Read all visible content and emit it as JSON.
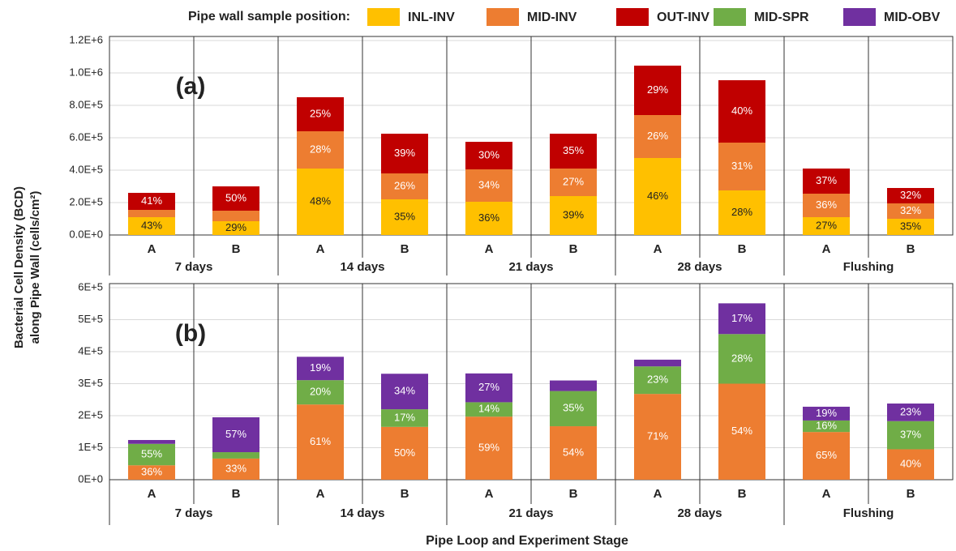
{
  "legend_title": "Pipe wall sample position:",
  "y_label": [
    "Bacterial Cell Density (BCD)",
    "along Pipe Wall (cells/cm²)"
  ],
  "x_label": "Pipe Loop and Experiment Stage",
  "chart_data": [
    {
      "type": "stacked_bar",
      "annotation": "(a)",
      "categories": [
        "A",
        "B",
        "A",
        "B",
        "A",
        "B",
        "A",
        "B",
        "A",
        "B"
      ],
      "group_labels": [
        "7 days",
        "14 days",
        "21 days",
        "28 days",
        "Flushing"
      ],
      "ylim": [
        0,
        1200000
      ],
      "yticks": [
        {
          "value": 0,
          "label": "0.0E+0"
        },
        {
          "value": 200000,
          "label": "2.0E+5"
        },
        {
          "value": 400000,
          "label": "4.0E+5"
        },
        {
          "value": 600000,
          "label": "6.0E+5"
        },
        {
          "value": 800000,
          "label": "8.0E+5"
        },
        {
          "value": 1000000,
          "label": "1.0E+6"
        },
        {
          "value": 1200000,
          "label": "1.2E+6"
        }
      ],
      "grid": true,
      "series": [
        {
          "name": "INL-INV",
          "color": "#ffc000",
          "label_color": "#222222",
          "values": [
            110000,
            85000,
            410000,
            220000,
            205000,
            240000,
            475000,
            275000,
            110000,
            100000
          ],
          "share_labels": [
            "43%",
            "29%",
            "48%",
            "35%",
            "36%",
            "39%",
            "46%",
            "28%",
            "27%",
            "35%"
          ]
        },
        {
          "name": "MID-INV",
          "color": "#ed7d31",
          "label_color": "#ffffff",
          "values": [
            45000,
            65000,
            230000,
            160000,
            200000,
            170000,
            265000,
            295000,
            145000,
            95000
          ],
          "share_labels": [
            null,
            null,
            "28%",
            "26%",
            "34%",
            "27%",
            "26%",
            "31%",
            "36%",
            "32%"
          ]
        },
        {
          "name": "OUT-INV",
          "color": "#c00000",
          "label_color": "#ffffff",
          "values": [
            105000,
            150000,
            210000,
            245000,
            170000,
            215000,
            305000,
            385000,
            155000,
            95000
          ],
          "share_labels": [
            "41%",
            "50%",
            "25%",
            "39%",
            "30%",
            "35%",
            "29%",
            "40%",
            "37%",
            "32%"
          ]
        }
      ]
    },
    {
      "type": "stacked_bar",
      "annotation": "(b)",
      "categories": [
        "A",
        "B",
        "A",
        "B",
        "A",
        "B",
        "A",
        "B",
        "A",
        "B"
      ],
      "group_labels": [
        "7 days",
        "14 days",
        "21 days",
        "28 days",
        "Flushing"
      ],
      "ylim": [
        0,
        600000
      ],
      "yticks": [
        {
          "value": 0,
          "label": "0E+0"
        },
        {
          "value": 100000,
          "label": "1E+5"
        },
        {
          "value": 200000,
          "label": "2E+5"
        },
        {
          "value": 300000,
          "label": "3E+5"
        },
        {
          "value": 400000,
          "label": "4E+5"
        },
        {
          "value": 500000,
          "label": "5E+5"
        },
        {
          "value": 600000,
          "label": "6E+5"
        }
      ],
      "grid": true,
      "series": [
        {
          "name": "MID-INV",
          "color": "#ed7d31",
          "label_color": "#ffffff",
          "values": [
            45000,
            66000,
            235000,
            165000,
            197000,
            167000,
            268000,
            300000,
            149000,
            95000
          ],
          "share_labels": [
            "36%",
            "33%",
            "61%",
            "50%",
            "59%",
            "54%",
            "71%",
            "54%",
            "65%",
            "40%"
          ]
        },
        {
          "name": "MID-SPR",
          "color": "#70ad47",
          "label_color": "#ffffff",
          "values": [
            67000,
            20000,
            76000,
            55000,
            45000,
            110000,
            86000,
            155000,
            36000,
            88000
          ],
          "share_labels": [
            "55%",
            null,
            "20%",
            "17%",
            "14%",
            "35%",
            "23%",
            "28%",
            "16%",
            "37%"
          ]
        },
        {
          "name": "MID-OBV",
          "color": "#7030a0",
          "label_color": "#ffffff",
          "values": [
            12000,
            109000,
            73000,
            111000,
            90000,
            33000,
            21000,
            96000,
            43000,
            55000
          ],
          "share_labels": [
            null,
            "57%",
            "19%",
            "34%",
            "27%",
            null,
            null,
            "17%",
            "19%",
            "23%"
          ]
        }
      ]
    }
  ]
}
